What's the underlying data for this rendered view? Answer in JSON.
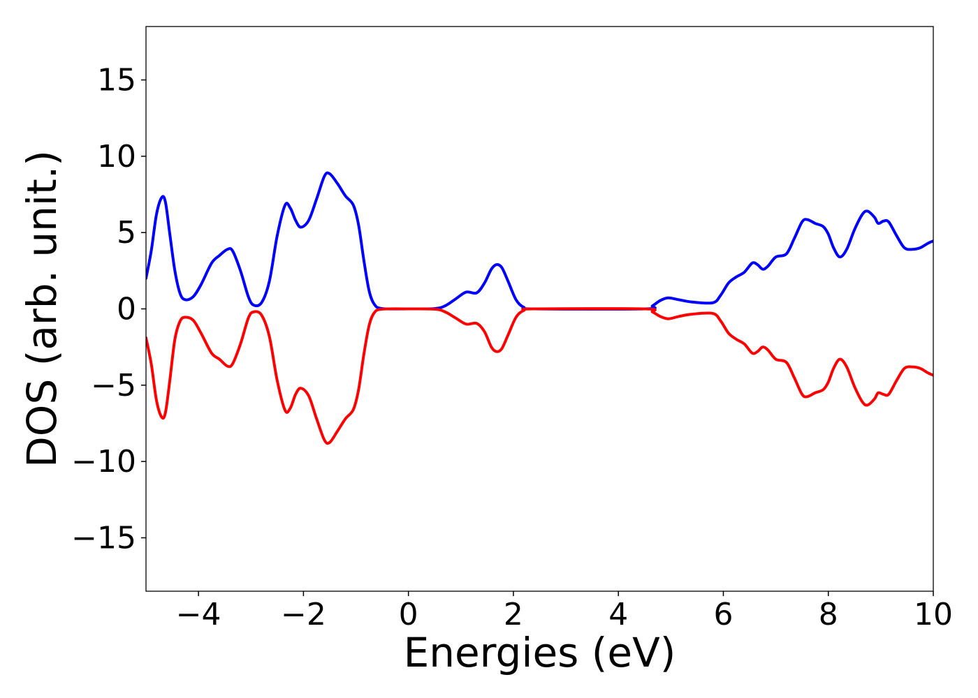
{
  "chart_data": {
    "type": "line",
    "title": "",
    "xlabel": "Energies (eV)",
    "ylabel": "DOS (arb. unit.)",
    "xlim": [
      -5,
      10
    ],
    "ylim": [
      -18.5,
      18.5
    ],
    "xticks": [
      -4,
      -2,
      0,
      2,
      4,
      6,
      8,
      10
    ],
    "xtick_labels": [
      "−4",
      "−2",
      "0",
      "2",
      "4",
      "6",
      "8",
      "10"
    ],
    "yticks": [
      -15,
      -10,
      -5,
      0,
      5,
      10,
      15
    ],
    "ytick_labels": [
      "−15",
      "−10",
      "−5",
      "0",
      "5",
      "10",
      "15"
    ],
    "grid": false,
    "legend": "none",
    "series": [
      {
        "color": "#0000ff",
        "points": [
          [
            -5.0,
            2.0
          ],
          [
            -4.9,
            3.8
          ],
          [
            -4.8,
            6.2
          ],
          [
            -4.7,
            7.3
          ],
          [
            -4.63,
            7.0
          ],
          [
            -4.55,
            5.0
          ],
          [
            -4.45,
            2.5
          ],
          [
            -4.35,
            1.0
          ],
          [
            -4.25,
            0.6
          ],
          [
            -4.1,
            0.8
          ],
          [
            -3.95,
            1.6
          ],
          [
            -3.75,
            3.0
          ],
          [
            -3.6,
            3.5
          ],
          [
            -3.45,
            3.9
          ],
          [
            -3.35,
            3.8
          ],
          [
            -3.2,
            2.5
          ],
          [
            -3.05,
            0.8
          ],
          [
            -2.95,
            0.25
          ],
          [
            -2.8,
            0.4
          ],
          [
            -2.65,
            1.8
          ],
          [
            -2.5,
            4.8
          ],
          [
            -2.35,
            6.8
          ],
          [
            -2.25,
            6.6
          ],
          [
            -2.15,
            5.8
          ],
          [
            -2.05,
            5.35
          ],
          [
            -1.9,
            5.8
          ],
          [
            -1.75,
            7.2
          ],
          [
            -1.6,
            8.7
          ],
          [
            -1.5,
            8.85
          ],
          [
            -1.35,
            8.2
          ],
          [
            -1.2,
            7.4
          ],
          [
            -1.05,
            6.8
          ],
          [
            -0.95,
            5.5
          ],
          [
            -0.85,
            3.2
          ],
          [
            -0.75,
            1.2
          ],
          [
            -0.65,
            0.3
          ],
          [
            -0.5,
            0.02
          ],
          [
            0.0,
            0.0
          ],
          [
            0.5,
            0.02
          ],
          [
            0.7,
            0.2
          ],
          [
            0.9,
            0.65
          ],
          [
            1.1,
            1.1
          ],
          [
            1.3,
            1.05
          ],
          [
            1.45,
            1.7
          ],
          [
            1.58,
            2.6
          ],
          [
            1.68,
            2.9
          ],
          [
            1.78,
            2.7
          ],
          [
            1.9,
            1.8
          ],
          [
            2.05,
            0.6
          ],
          [
            2.2,
            0.1
          ],
          [
            2.4,
            0.0
          ],
          [
            4.5,
            0.0
          ],
          [
            4.65,
            0.2
          ],
          [
            4.8,
            0.55
          ],
          [
            4.95,
            0.72
          ],
          [
            5.15,
            0.6
          ],
          [
            5.4,
            0.45
          ],
          [
            5.8,
            0.4
          ],
          [
            5.95,
            0.9
          ],
          [
            6.1,
            1.7
          ],
          [
            6.25,
            2.1
          ],
          [
            6.4,
            2.4
          ],
          [
            6.55,
            3.0
          ],
          [
            6.65,
            2.9
          ],
          [
            6.75,
            2.6
          ],
          [
            6.85,
            2.8
          ],
          [
            7.0,
            3.4
          ],
          [
            7.2,
            3.6
          ],
          [
            7.35,
            4.6
          ],
          [
            7.5,
            5.7
          ],
          [
            7.6,
            5.85
          ],
          [
            7.75,
            5.6
          ],
          [
            7.9,
            5.4
          ],
          [
            8.0,
            4.9
          ],
          [
            8.1,
            4.0
          ],
          [
            8.22,
            3.4
          ],
          [
            8.35,
            3.9
          ],
          [
            8.5,
            5.2
          ],
          [
            8.65,
            6.2
          ],
          [
            8.75,
            6.4
          ],
          [
            8.88,
            6.0
          ],
          [
            8.95,
            5.6
          ],
          [
            9.05,
            5.75
          ],
          [
            9.15,
            5.7
          ],
          [
            9.3,
            4.8
          ],
          [
            9.45,
            4.0
          ],
          [
            9.6,
            3.9
          ],
          [
            9.75,
            4.0
          ],
          [
            9.9,
            4.3
          ],
          [
            10.0,
            4.45
          ]
        ]
      },
      {
        "color": "#ff0000",
        "points": [
          [
            -5.0,
            -1.9
          ],
          [
            -4.9,
            -3.6
          ],
          [
            -4.8,
            -6.0
          ],
          [
            -4.7,
            -7.1
          ],
          [
            -4.63,
            -6.8
          ],
          [
            -4.55,
            -4.8
          ],
          [
            -4.45,
            -2.0
          ],
          [
            -4.35,
            -0.8
          ],
          [
            -4.25,
            -0.55
          ],
          [
            -4.1,
            -0.75
          ],
          [
            -3.95,
            -1.6
          ],
          [
            -3.75,
            -2.9
          ],
          [
            -3.6,
            -3.3
          ],
          [
            -3.45,
            -3.75
          ],
          [
            -3.35,
            -3.6
          ],
          [
            -3.2,
            -2.3
          ],
          [
            -3.05,
            -0.6
          ],
          [
            -2.95,
            -0.2
          ],
          [
            -2.8,
            -0.4
          ],
          [
            -2.65,
            -1.8
          ],
          [
            -2.5,
            -4.7
          ],
          [
            -2.35,
            -6.65
          ],
          [
            -2.25,
            -6.5
          ],
          [
            -2.15,
            -5.6
          ],
          [
            -2.05,
            -5.2
          ],
          [
            -1.9,
            -5.7
          ],
          [
            -1.75,
            -7.2
          ],
          [
            -1.6,
            -8.6
          ],
          [
            -1.5,
            -8.75
          ],
          [
            -1.35,
            -8.0
          ],
          [
            -1.2,
            -7.2
          ],
          [
            -1.05,
            -6.6
          ],
          [
            -0.95,
            -5.3
          ],
          [
            -0.85,
            -3.0
          ],
          [
            -0.75,
            -1.1
          ],
          [
            -0.65,
            -0.25
          ],
          [
            -0.5,
            -0.02
          ],
          [
            0.0,
            0.0
          ],
          [
            0.5,
            -0.02
          ],
          [
            0.7,
            -0.2
          ],
          [
            0.9,
            -0.6
          ],
          [
            1.1,
            -1.0
          ],
          [
            1.3,
            -0.95
          ],
          [
            1.45,
            -1.5
          ],
          [
            1.58,
            -2.5
          ],
          [
            1.68,
            -2.8
          ],
          [
            1.78,
            -2.6
          ],
          [
            1.9,
            -1.7
          ],
          [
            2.05,
            -0.55
          ],
          [
            2.2,
            -0.1
          ],
          [
            2.4,
            0.0
          ],
          [
            4.5,
            0.0
          ],
          [
            4.65,
            -0.2
          ],
          [
            4.8,
            -0.5
          ],
          [
            4.95,
            -0.65
          ],
          [
            5.15,
            -0.5
          ],
          [
            5.4,
            -0.35
          ],
          [
            5.8,
            -0.3
          ],
          [
            5.95,
            -0.8
          ],
          [
            6.1,
            -1.6
          ],
          [
            6.25,
            -2.0
          ],
          [
            6.4,
            -2.3
          ],
          [
            6.55,
            -2.9
          ],
          [
            6.65,
            -2.8
          ],
          [
            6.75,
            -2.5
          ],
          [
            6.85,
            -2.7
          ],
          [
            7.0,
            -3.3
          ],
          [
            7.2,
            -3.5
          ],
          [
            7.35,
            -4.5
          ],
          [
            7.5,
            -5.6
          ],
          [
            7.6,
            -5.75
          ],
          [
            7.75,
            -5.5
          ],
          [
            7.9,
            -5.3
          ],
          [
            8.0,
            -4.8
          ],
          [
            8.1,
            -3.9
          ],
          [
            8.22,
            -3.3
          ],
          [
            8.35,
            -3.8
          ],
          [
            8.5,
            -5.1
          ],
          [
            8.65,
            -6.1
          ],
          [
            8.75,
            -6.3
          ],
          [
            8.88,
            -5.9
          ],
          [
            8.95,
            -5.5
          ],
          [
            9.05,
            -5.6
          ],
          [
            9.15,
            -5.6
          ],
          [
            9.3,
            -4.7
          ],
          [
            9.45,
            -3.9
          ],
          [
            9.6,
            -3.8
          ],
          [
            9.75,
            -3.9
          ],
          [
            9.9,
            -4.2
          ],
          [
            10.0,
            -4.35
          ]
        ]
      }
    ]
  }
}
